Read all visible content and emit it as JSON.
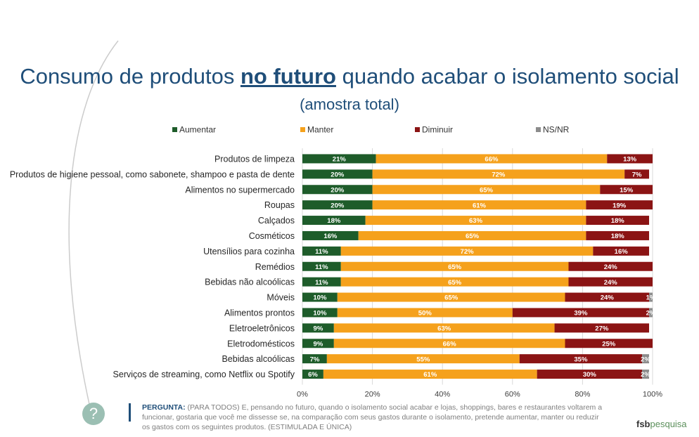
{
  "header": {
    "title_prefix": "Consumo de produtos ",
    "title_highlight": "no futuro",
    "title_suffix": " quando acabar o isolamento social",
    "subtitle": "(amostra total)"
  },
  "colors": {
    "aumentar": "#1e5c2a",
    "manter": "#f5a11c",
    "diminuir": "#8b1414",
    "nsnr": "#8c8c8c",
    "title": "#1f4e79"
  },
  "chart_data": {
    "type": "bar",
    "orientation": "horizontal",
    "stacked": true,
    "categories": [
      "Produtos de limpeza",
      "Produtos de higiene pessoal, como sabonete, shampoo e pasta de dente",
      "Alimentos no supermercado",
      "Roupas",
      "Calçados",
      "Cosméticos",
      "Utensílios para cozinha",
      "Remédios",
      "Bebidas não alcoólicas",
      "Móveis",
      "Alimentos prontos",
      "Eletroeletrônicos",
      "Eletrodomésticos",
      "Bebidas alcoólicas",
      "Serviços de streaming, como Netflix ou Spotify"
    ],
    "series": [
      {
        "name": "Aumentar",
        "values": [
          21,
          20,
          20,
          20,
          18,
          16,
          11,
          11,
          11,
          10,
          10,
          9,
          9,
          7,
          6
        ]
      },
      {
        "name": "Manter",
        "values": [
          66,
          72,
          65,
          61,
          63,
          65,
          72,
          65,
          65,
          65,
          50,
          63,
          66,
          55,
          61
        ]
      },
      {
        "name": "Diminuir",
        "values": [
          13,
          7,
          15,
          19,
          18,
          18,
          16,
          24,
          24,
          24,
          39,
          27,
          25,
          35,
          30
        ]
      },
      {
        "name": "NS/NR",
        "values": [
          0,
          0,
          0,
          0,
          0,
          0,
          0,
          0,
          0,
          1,
          2,
          0,
          0,
          2,
          2
        ]
      }
    ],
    "xlim": [
      0,
      100
    ],
    "x_ticks": [
      "0%",
      "20%",
      "40%",
      "60%",
      "80%",
      "100%"
    ],
    "legend_position": "top",
    "grid": true
  },
  "footer": {
    "question_label": "PERGUNTA:",
    "question_text": " (PARA TODOS) E, pensando no futuro, quando o isolamento social acabar e lojas, shoppings, bares e restaurantes voltarem a funcionar, gostaria que você me dissesse se, na comparação com seus gastos durante o isolamento, pretende aumentar, manter ou reduzir os gastos com os seguintes produtos. (ESTIMULADA E ÚNICA)",
    "help_glyph": "?",
    "logo_a": "fsb",
    "logo_b": "pesquisa"
  }
}
